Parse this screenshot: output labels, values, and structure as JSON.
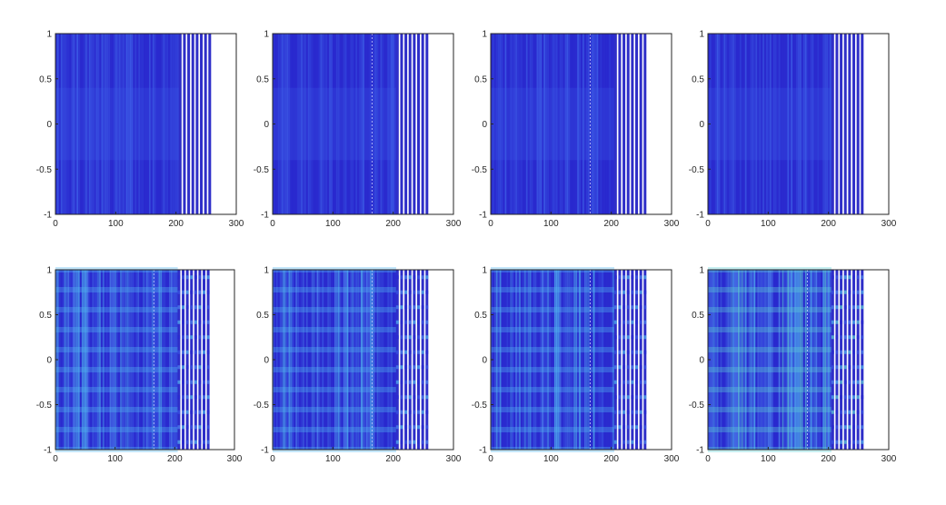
{
  "chart_data": [
    {
      "type": "heatmap",
      "pattern": "smooth",
      "seed": 1,
      "xlim": [
        0,
        300
      ],
      "ylim": [
        -1,
        1
      ],
      "xticks": [
        "0",
        "100",
        "200",
        "300"
      ],
      "yticks": [
        "1",
        "0.5",
        "0",
        "-0.5",
        "-1"
      ],
      "dense_range": [
        0,
        205
      ],
      "guides": [],
      "stripes": [
        207,
        214,
        221,
        228,
        235,
        242,
        249,
        256
      ],
      "background": "#2a2acf",
      "palette": [
        "#2a2acf",
        "#3346dc",
        "#3f62e8"
      ]
    },
    {
      "type": "heatmap",
      "pattern": "smooth",
      "seed": 2,
      "xlim": [
        0,
        300
      ],
      "ylim": [
        -1,
        1
      ],
      "xticks": [
        "0",
        "100",
        "200",
        "300"
      ],
      "yticks": [
        "1",
        "0.5",
        "0",
        "-0.5",
        "-1"
      ],
      "dense_range": [
        0,
        205
      ],
      "guides": [
        165
      ],
      "stripes": [
        207,
        214,
        221,
        228,
        235,
        242,
        249,
        256
      ],
      "background": "#2a2acf",
      "palette": [
        "#2a2acf",
        "#3346dc",
        "#3f62e8"
      ]
    },
    {
      "type": "heatmap",
      "pattern": "smooth",
      "seed": 3,
      "xlim": [
        0,
        300
      ],
      "ylim": [
        -1,
        1
      ],
      "xticks": [
        "0",
        "100",
        "200",
        "300"
      ],
      "yticks": [
        "1",
        "0.5",
        "0",
        "-0.5",
        "-1"
      ],
      "dense_range": [
        0,
        205
      ],
      "guides": [
        165
      ],
      "stripes": [
        207,
        214,
        221,
        228,
        235,
        242,
        249,
        256
      ],
      "background": "#2a2acf",
      "palette": [
        "#2a2acf",
        "#3346dc",
        "#3f62e8"
      ]
    },
    {
      "type": "heatmap",
      "pattern": "smooth",
      "seed": 4,
      "xlim": [
        0,
        300
      ],
      "ylim": [
        -1,
        1
      ],
      "xticks": [
        "0",
        "100",
        "200",
        "300"
      ],
      "yticks": [
        "1",
        "0.5",
        "0",
        "-0.5",
        "-1"
      ],
      "dense_range": [
        0,
        205
      ],
      "guides": [],
      "stripes": [
        207,
        214,
        221,
        228,
        235,
        242,
        249,
        256
      ],
      "background": "#2a2acf",
      "palette": [
        "#2a2acf",
        "#3346dc",
        "#3f62e8"
      ]
    },
    {
      "type": "heatmap",
      "pattern": "banded",
      "seed": 5,
      "xlim": [
        0,
        300
      ],
      "ylim": [
        -1,
        1
      ],
      "xticks": [
        "0",
        "100",
        "200",
        "300"
      ],
      "yticks": [
        "1",
        "0.5",
        "0",
        "-0.5",
        "-1"
      ],
      "dense_range": [
        0,
        205
      ],
      "guides": [
        165
      ],
      "stripes": [
        207,
        214,
        221,
        228,
        235,
        242,
        249,
        256
      ],
      "background": "#2a2acf",
      "palette": [
        "#2a2acf",
        "#3a55e2",
        "#4f86ee",
        "#52b6f0"
      ]
    },
    {
      "type": "heatmap",
      "pattern": "banded",
      "seed": 6,
      "xlim": [
        0,
        300
      ],
      "ylim": [
        -1,
        1
      ],
      "xticks": [
        "0",
        "100",
        "200",
        "300"
      ],
      "yticks": [
        "1",
        "0.5",
        "0",
        "-0.5",
        "-1"
      ],
      "dense_range": [
        0,
        205
      ],
      "guides": [
        165
      ],
      "stripes": [
        207,
        214,
        221,
        228,
        235,
        242,
        249,
        256
      ],
      "background": "#2a2acf",
      "palette": [
        "#2a2acf",
        "#3a55e2",
        "#4f86ee",
        "#52b6f0"
      ]
    },
    {
      "type": "heatmap",
      "pattern": "banded",
      "seed": 7,
      "xlim": [
        0,
        300
      ],
      "ylim": [
        -1,
        1
      ],
      "xticks": [
        "0",
        "100",
        "200",
        "300"
      ],
      "yticks": [
        "1",
        "0.5",
        "0",
        "-0.5",
        "-1"
      ],
      "dense_range": [
        0,
        205
      ],
      "guides": [
        165
      ],
      "stripes": [
        207,
        214,
        221,
        228,
        235,
        242,
        249,
        256
      ],
      "background": "#2a2acf",
      "palette": [
        "#2a2acf",
        "#3a55e2",
        "#4f86ee",
        "#52b6f0"
      ]
    },
    {
      "type": "heatmap",
      "pattern": "banded",
      "seed": 8,
      "xlim": [
        0,
        300
      ],
      "ylim": [
        -1,
        1
      ],
      "xticks": [
        "0",
        "100",
        "200",
        "300"
      ],
      "yticks": [
        "1",
        "0.5",
        "0",
        "-0.5",
        "-1"
      ],
      "dense_range": [
        0,
        205
      ],
      "guides": [
        165
      ],
      "stripes": [
        207,
        214,
        221,
        228,
        235,
        242,
        249,
        256
      ],
      "background": "#2a2acf",
      "palette": [
        "#2a2acf",
        "#3a55e2",
        "#4f86ee",
        "#52b6f0",
        "#5fd0d8"
      ]
    }
  ]
}
